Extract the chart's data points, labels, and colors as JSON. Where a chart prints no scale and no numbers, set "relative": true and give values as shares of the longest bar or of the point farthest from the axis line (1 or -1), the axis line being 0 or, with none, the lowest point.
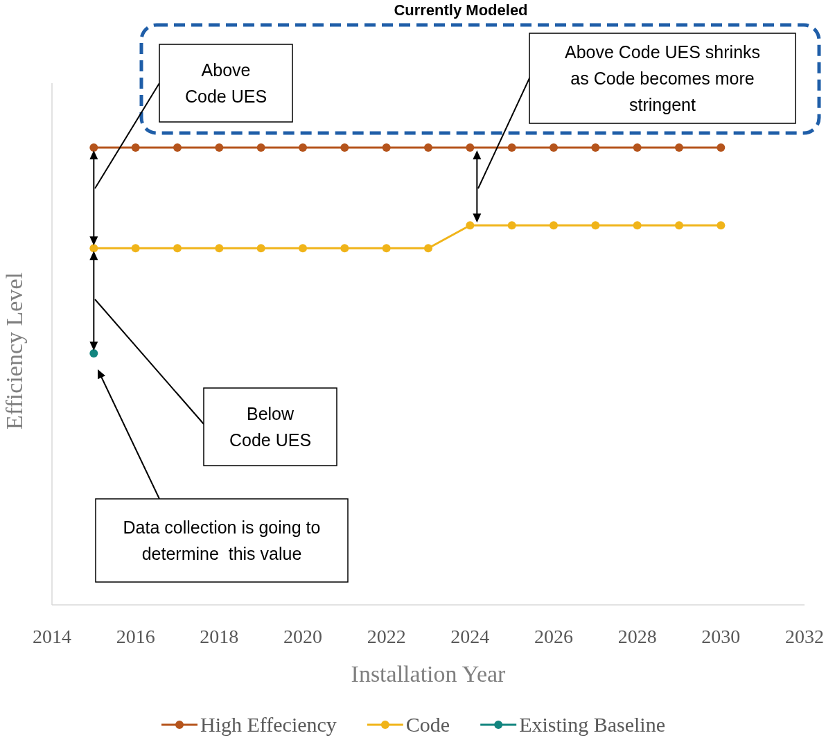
{
  "chart_data": {
    "type": "line",
    "relative": true,
    "xlabel": "Installation Year",
    "ylabel": "Efficiency Level",
    "xlim": [
      2014,
      2032
    ],
    "xticks": [
      2014,
      2016,
      2018,
      2020,
      2022,
      2024,
      2026,
      2028,
      2030,
      2032
    ],
    "grid": false,
    "legend": "bottom",
    "marker": "circle",
    "line_style": "solid",
    "series": [
      {
        "name": "High Effeciency",
        "color": "#b5541c",
        "x": [
          2015,
          2016,
          2017,
          2018,
          2019,
          2020,
          2021,
          2022,
          2023,
          2024,
          2025,
          2026,
          2027,
          2028,
          2029,
          2030
        ],
        "values": [
          1,
          1,
          1,
          1,
          1,
          1,
          1,
          1,
          1,
          1,
          1,
          1,
          1,
          1,
          1,
          1
        ]
      },
      {
        "name": "Code",
        "color": "#f0b419",
        "x": [
          2015,
          2016,
          2017,
          2018,
          2019,
          2020,
          2021,
          2022,
          2023,
          2024,
          2025,
          2026,
          2027,
          2028,
          2029,
          2030
        ],
        "values": [
          0.78,
          0.78,
          0.78,
          0.78,
          0.78,
          0.78,
          0.78,
          0.78,
          0.78,
          0.83,
          0.83,
          0.83,
          0.83,
          0.83,
          0.83,
          0.83
        ]
      },
      {
        "name": "Existing Baseline",
        "color": "#12857f",
        "x": [
          2015
        ],
        "values": [
          0.55
        ]
      }
    ],
    "annotations": [
      "Currently Modeled",
      "Above Code UES",
      "Above Code UES shrinks as Code becomes more stringent",
      "Below Code UES",
      "Data collection is going to determine  this value"
    ]
  }
}
